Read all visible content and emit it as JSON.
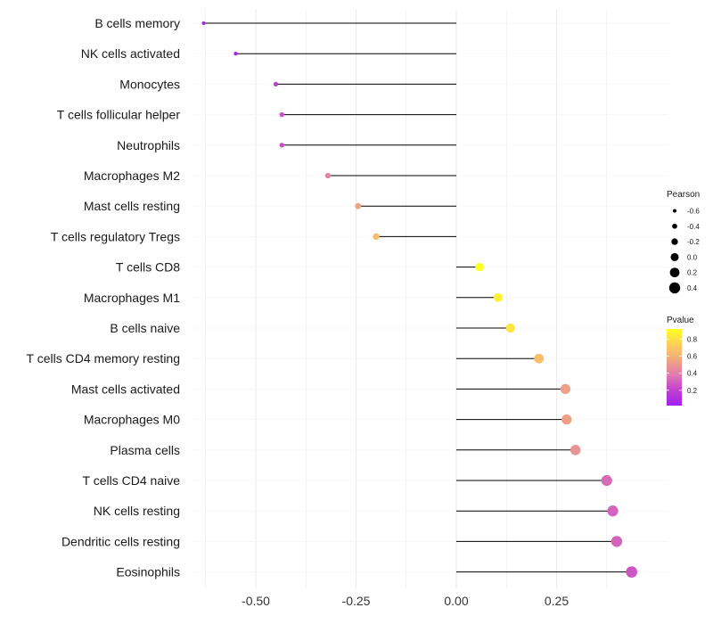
{
  "chart_data": {
    "type": "lollipop",
    "title": "",
    "xlabel": "",
    "ylabel": "",
    "xlim": [
      -0.63,
      0.48
    ],
    "x_ticks": [
      -0.5,
      -0.25,
      0.0,
      0.25
    ],
    "x_tick_labels": [
      "-0.50",
      "-0.25",
      "0.00",
      "0.25"
    ],
    "grid": true,
    "categories": [
      "B cells memory",
      "NK cells activated",
      "Monocytes",
      "T cells follicular helper",
      "Neutrophils",
      "Macrophages M2",
      "Mast cells resting",
      "T cells regulatory  Tregs ",
      "T cells CD8",
      "Macrophages M1",
      "B cells naive",
      "T cells CD4 memory resting",
      "Mast cells activated",
      "Macrophages M0",
      "Plasma cells",
      "T cells CD4 naive",
      "NK cells resting",
      "Dendritic cells resting",
      "Eosinophils"
    ],
    "values": [
      -0.63,
      -0.55,
      -0.45,
      -0.435,
      -0.435,
      -0.32,
      -0.245,
      -0.2,
      0.058,
      0.104,
      0.135,
      0.206,
      0.272,
      0.275,
      0.297,
      0.375,
      0.39,
      0.4,
      0.437
    ],
    "pvalue": [
      0.05,
      0.07,
      0.2,
      0.25,
      0.25,
      0.42,
      0.55,
      0.65,
      0.92,
      0.87,
      0.82,
      0.66,
      0.53,
      0.53,
      0.48,
      0.33,
      0.31,
      0.31,
      0.27
    ],
    "legend_position": "right",
    "size_legend": {
      "title": "Pearson",
      "labels": [
        "-0.6",
        "-0.4",
        "-0.2",
        "0.0",
        "0.2",
        "0.4"
      ],
      "values": [
        -0.6,
        -0.4,
        -0.2,
        0.0,
        0.2,
        0.4
      ]
    },
    "color_legend": {
      "title": "Pvalue",
      "labels": [
        "0.8",
        "0.6",
        "0.4",
        "0.2"
      ],
      "values": [
        0.8,
        0.6,
        0.4,
        0.2
      ],
      "range": [
        0.02,
        0.92
      ],
      "colors": [
        "#a020f0",
        "#c040d0",
        "#e07ab0",
        "#f0a880",
        "#ffd058",
        "#ffff24"
      ]
    },
    "line_color": "#000000",
    "grid_color": "#ebebeb"
  }
}
